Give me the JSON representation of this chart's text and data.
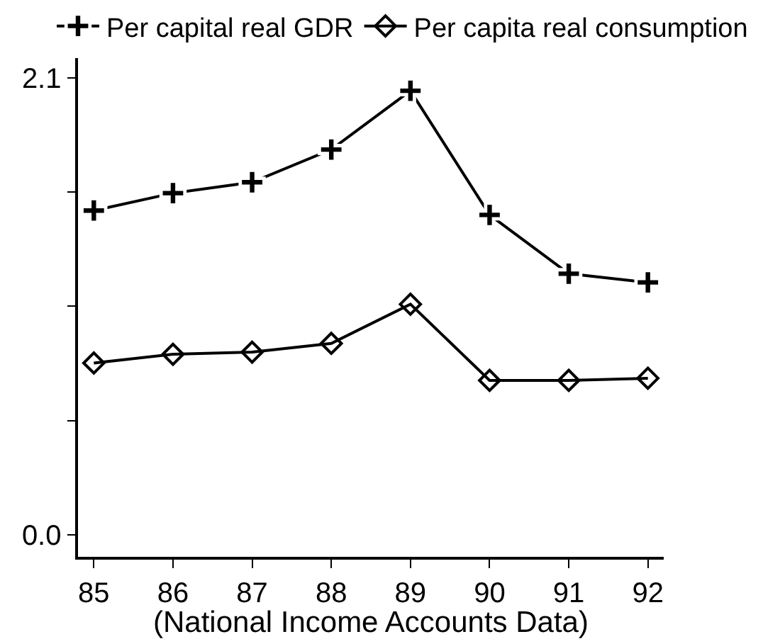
{
  "chart_data": {
    "type": "line",
    "xlabel": "(National Income Accounts Data)",
    "x": [
      85,
      86,
      87,
      88,
      89,
      90,
      91,
      92
    ],
    "series": [
      {
        "name": "Per capital real GDR",
        "color": "#000000",
        "marker": "cross",
        "values": [
          1.49,
          1.57,
          1.62,
          1.77,
          2.04,
          1.47,
          1.2,
          1.16
        ]
      },
      {
        "name": "Per capita real consumption",
        "color": "#000000",
        "marker": "diamond",
        "values": [
          0.79,
          0.83,
          0.84,
          0.88,
          1.06,
          0.71,
          0.71,
          0.72
        ]
      }
    ],
    "xlim": [
      84.8,
      92.2
    ],
    "xticks": [
      85,
      86,
      87,
      88,
      89,
      90,
      91,
      92
    ],
    "ylim": [
      -0.1,
      2.19
    ],
    "yticks": [
      {
        "value": 0,
        "label": "0.0"
      },
      {
        "value": 0.525,
        "label": null
      },
      {
        "value": 1.05,
        "label": null
      },
      {
        "value": 1.575,
        "label": null
      },
      2.1
    ],
    "legend": "top",
    "line_style": "solid"
  }
}
